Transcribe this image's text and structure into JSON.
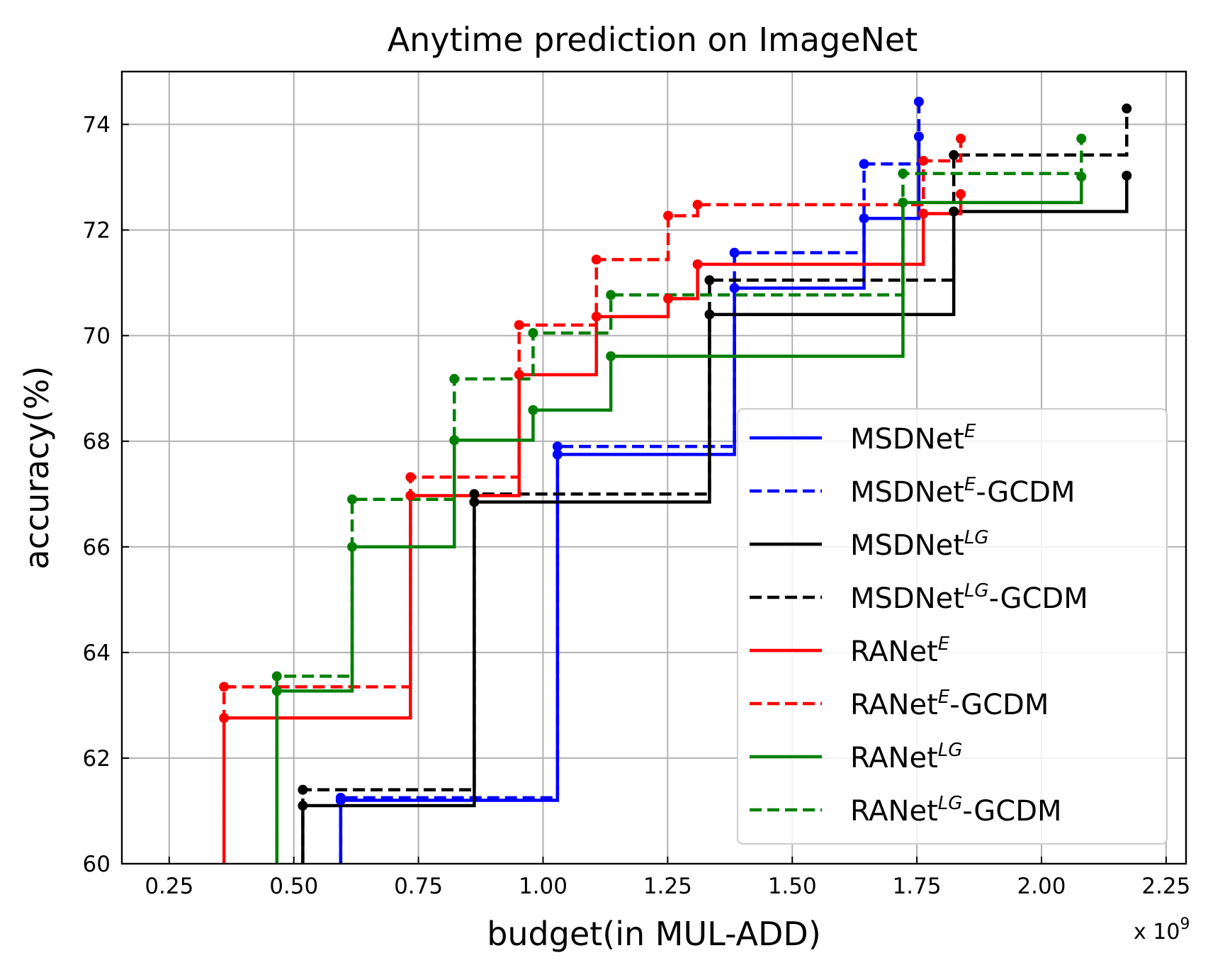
{
  "chart_data": {
    "type": "line",
    "title": "Anytime prediction on ImageNet",
    "xlabel": "budget(in MUL-ADD)",
    "ylabel": "accuracy(%)",
    "x_multiplier_base": "x 10",
    "x_multiplier_exp": "9",
    "xlim": [
      0.155,
      2.29
    ],
    "ylim": [
      60,
      75
    ],
    "xticks": [
      0.25,
      0.5,
      0.75,
      1.0,
      1.25,
      1.5,
      1.75,
      2.0,
      2.25
    ],
    "xtick_labels": [
      "0.25",
      "0.50",
      "0.75",
      "1.00",
      "1.25",
      "1.50",
      "1.75",
      "2.00",
      "2.25"
    ],
    "yticks": [
      60,
      62,
      64,
      66,
      68,
      70,
      72,
      74
    ],
    "ytick_labels": [
      "60",
      "62",
      "64",
      "66",
      "68",
      "70",
      "72",
      "74"
    ],
    "grid": true,
    "legend_position": "lower-right",
    "series": [
      {
        "name": "MSDNet",
        "sup": "E",
        "suffix": "",
        "color": "#0000ff",
        "dash": false,
        "x": [
          0.594,
          1.029,
          1.384,
          1.644,
          1.754
        ],
        "y": [
          61.2,
          67.75,
          70.9,
          72.22,
          73.77
        ]
      },
      {
        "name": "MSDNet",
        "sup": "E",
        "suffix": "-GCDM",
        "color": "#0000ff",
        "dash": true,
        "x": [
          0.594,
          1.029,
          1.384,
          1.644,
          1.754
        ],
        "y": [
          61.25,
          67.9,
          71.57,
          73.25,
          74.43
        ]
      },
      {
        "name": "MSDNet",
        "sup": "LG",
        "suffix": "",
        "color": "#000000",
        "dash": false,
        "x": [
          0.518,
          0.862,
          1.334,
          1.824,
          2.171
        ],
        "y": [
          61.1,
          66.85,
          70.4,
          72.35,
          73.03
        ]
      },
      {
        "name": "MSDNet",
        "sup": "LG",
        "suffix": "-GCDM",
        "color": "#000000",
        "dash": true,
        "x": [
          0.518,
          0.862,
          1.334,
          1.824,
          2.171
        ],
        "y": [
          61.4,
          67.0,
          71.05,
          73.42,
          74.3
        ]
      },
      {
        "name": "RANet",
        "sup": "E",
        "suffix": "",
        "color": "#ff0000",
        "dash": false,
        "x": [
          0.36,
          0.734,
          0.952,
          1.107,
          1.251,
          1.31,
          1.763,
          1.838
        ],
        "y": [
          62.76,
          66.97,
          69.26,
          70.36,
          70.7,
          71.35,
          72.31,
          72.68
        ]
      },
      {
        "name": "RANet",
        "sup": "E",
        "suffix": "-GCDM",
        "color": "#ff0000",
        "dash": true,
        "x": [
          0.36,
          0.734,
          0.952,
          1.107,
          1.251,
          1.31,
          1.763,
          1.838
        ],
        "y": [
          63.35,
          67.32,
          70.2,
          71.44,
          72.27,
          72.48,
          73.31,
          73.73
        ]
      },
      {
        "name": "RANet",
        "sup": "LG",
        "suffix": "",
        "color": "#008000",
        "dash": false,
        "x": [
          0.466,
          0.617,
          0.822,
          0.98,
          1.136,
          1.722,
          2.08
        ],
        "y": [
          63.27,
          66.0,
          68.02,
          68.59,
          69.61,
          72.52,
          73.01
        ]
      },
      {
        "name": "RANet",
        "sup": "LG",
        "suffix": "-GCDM",
        "color": "#008000",
        "dash": true,
        "x": [
          0.466,
          0.617,
          0.822,
          0.98,
          1.136,
          1.722,
          2.08
        ],
        "y": [
          63.55,
          66.9,
          69.18,
          70.05,
          70.77,
          73.07,
          73.73
        ]
      }
    ]
  }
}
